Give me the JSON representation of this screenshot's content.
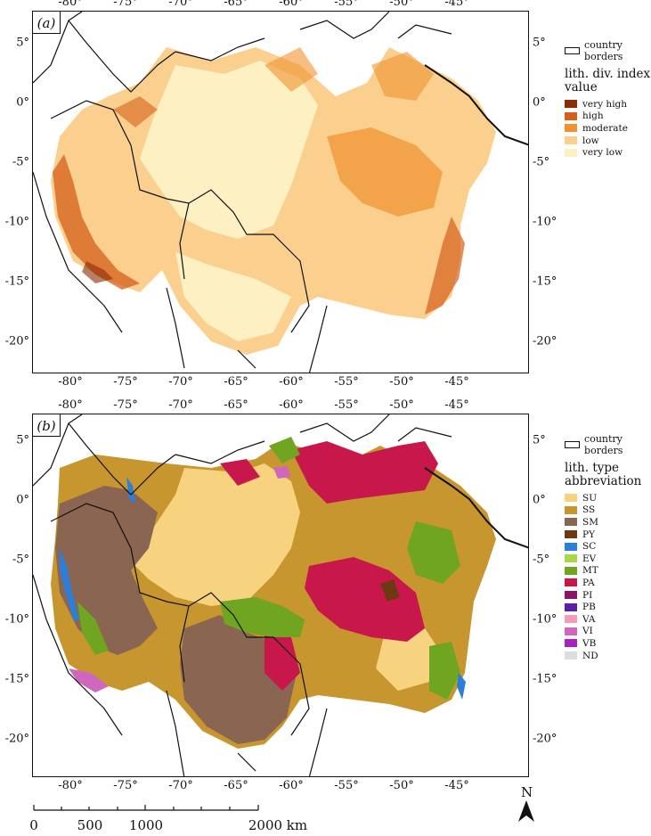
{
  "panels": [
    {
      "id": "a",
      "label": "(a)"
    },
    {
      "id": "b",
      "label": "(b)"
    }
  ],
  "axes": {
    "lon_ticks": [
      "-80°",
      "-75°",
      "-70°",
      "-65°",
      "-60°",
      "-55°",
      "-50°",
      "-45°"
    ],
    "lat_ticks": [
      "5°",
      "0°",
      "-5°",
      "-10°",
      "-15°",
      "-20°"
    ]
  },
  "legend_a": {
    "border_label": "country borders",
    "title_line1": "lith. div. index",
    "title_line2": "value",
    "items": [
      {
        "label": "very high",
        "color": "#8b2c02"
      },
      {
        "label": "high",
        "color": "#d4601a"
      },
      {
        "label": "moderate",
        "color": "#f0922e"
      },
      {
        "label": "low",
        "color": "#fbd08f"
      },
      {
        "label": "very low",
        "color": "#fdf1c4"
      }
    ]
  },
  "legend_b": {
    "border_label": "country borders",
    "title_line1": "lith. type",
    "title_line2": "abbreviation",
    "items": [
      {
        "label": "SU",
        "color": "#f7d27f"
      },
      {
        "label": "SS",
        "color": "#c8962e"
      },
      {
        "label": "SM",
        "color": "#8a6652"
      },
      {
        "label": "PY",
        "color": "#6b3a12"
      },
      {
        "label": "SC",
        "color": "#2b7fd6"
      },
      {
        "label": "EV",
        "color": "#a8d84a"
      },
      {
        "label": "MT",
        "color": "#6fa521"
      },
      {
        "label": "PA",
        "color": "#c8174a"
      },
      {
        "label": "PI",
        "color": "#8a1466"
      },
      {
        "label": "PB",
        "color": "#5a1fa3"
      },
      {
        "label": "VA",
        "color": "#f59ab8"
      },
      {
        "label": "VI",
        "color": "#cf67be"
      },
      {
        "label": "VB",
        "color": "#a81fc2"
      },
      {
        "label": "ND",
        "color": "#dddddd"
      }
    ]
  },
  "scale": {
    "labels": [
      {
        "text": "0",
        "km": 0
      },
      {
        "text": "500",
        "km": 500
      },
      {
        "text": "1000",
        "km": 1000
      },
      {
        "text": "2000 km",
        "km": 2000
      }
    ]
  },
  "north_label": "N"
}
